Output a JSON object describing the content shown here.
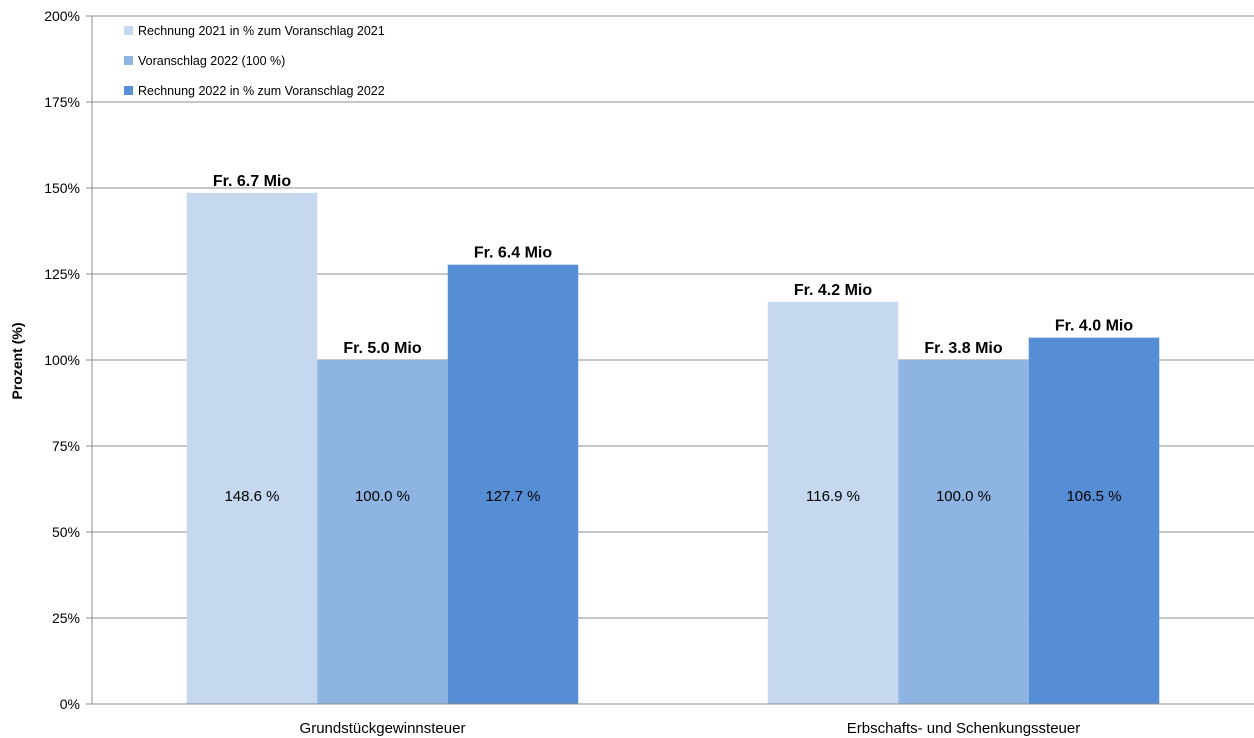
{
  "chart_data": {
    "type": "bar",
    "categories": [
      "Grundstückgewinnsteuer",
      "Erbschafts- und Schenkungssteuer"
    ],
    "series": [
      {
        "name": "Rechnung 2021 in % zum Voranschlag 2021",
        "color": "#c5d8ef",
        "values": [
          148.6,
          116.9
        ],
        "value_labels": [
          "148.6 %",
          "116.9 %"
        ],
        "amount_labels": [
          "Fr. 6.7 Mio",
          "Fr. 4.2 Mio"
        ]
      },
      {
        "name": "Voranschlag 2022 (100 %)",
        "color": "#8eb4e2",
        "values": [
          100.0,
          100.0
        ],
        "value_labels": [
          "100.0 %",
          "100.0 %"
        ],
        "amount_labels": [
          "Fr. 5.0 Mio",
          "Fr. 3.8 Mio"
        ]
      },
      {
        "name": "Rechnung 2022 in % zum Voranschlag 2022",
        "color": "#558ed5",
        "values": [
          127.7,
          106.5
        ],
        "value_labels": [
          "127.7 %",
          "106.5 %"
        ],
        "amount_labels": [
          "Fr. 6.4 Mio",
          "Fr. 4.0 Mio"
        ]
      }
    ],
    "title": "",
    "xlabel": "",
    "ylabel": "Prozent (%)",
    "ylim": [
      0,
      200
    ],
    "yticks": [
      0,
      25,
      50,
      75,
      100,
      125,
      150,
      175,
      200
    ],
    "ytick_labels": [
      "0%",
      "25%",
      "50%",
      "75%",
      "100%",
      "125%",
      "150%",
      "175%",
      "200%"
    ],
    "grid": true,
    "legend_position": "top-left"
  }
}
